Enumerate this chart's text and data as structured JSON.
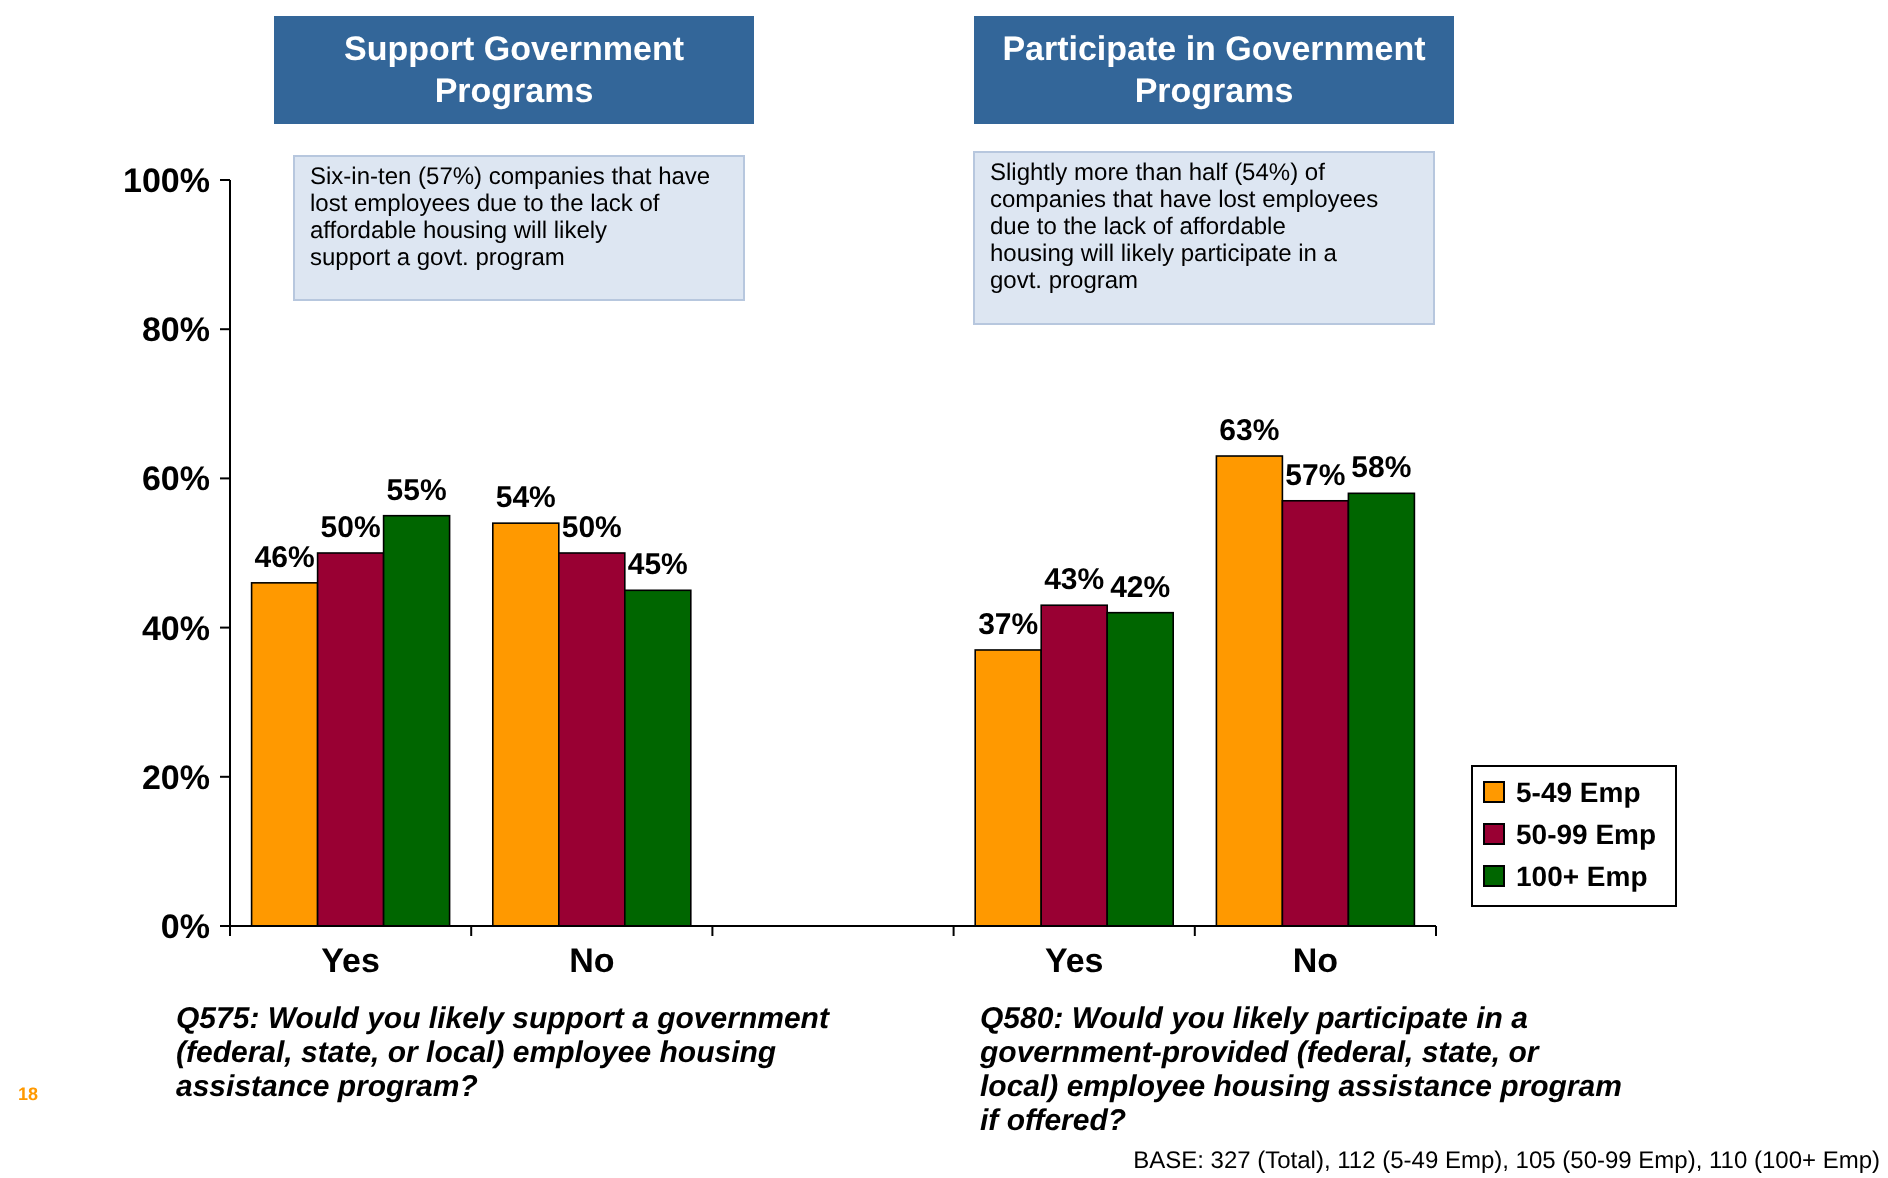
{
  "chart_data": {
    "type": "bar",
    "categories": [
      "Yes",
      "No",
      null,
      "Yes",
      "No"
    ],
    "series": [
      {
        "name": "5-49 Emp",
        "color": "#ff9900",
        "values": [
          46,
          54,
          null,
          37,
          63
        ],
        "value_labels": [
          "46%",
          "54%",
          null,
          "37%",
          "63%"
        ]
      },
      {
        "name": "50-99 Emp",
        "color": "#990033",
        "values": [
          50,
          50,
          null,
          43,
          57
        ],
        "value_labels": [
          "50%",
          "50%",
          null,
          "43%",
          "57%"
        ]
      },
      {
        "name": "100+ Emp",
        "color": "#006600",
        "values": [
          55,
          45,
          null,
          42,
          58
        ],
        "value_labels": [
          "55%",
          "45%",
          null,
          "42%",
          "58%"
        ]
      }
    ],
    "ylim": [
      0,
      100
    ],
    "yticks": [
      {
        "value": 0,
        "label": "0%"
      },
      {
        "value": 20,
        "label": "20%"
      },
      {
        "value": 40,
        "label": "40%"
      },
      {
        "value": 60,
        "label": "60%"
      },
      {
        "value": 80,
        "label": "80%"
      },
      {
        "value": 100,
        "label": "100%"
      }
    ],
    "legend": "right",
    "grid": false,
    "annotations": [
      "Support Government Programs",
      "Participate in Government Programs",
      "Six-in-ten (57%) companies that have lost employees due to the lack of affordable housing will likely support a govt. program",
      "Slightly more than half (54%) of companies that have lost employees due to the lack of affordable housing will likely participate in a govt. program",
      "Q575: Would you likely support a government (federal, state, or local) employee housing assistance program?",
      "Q580: Would you likely participate in a government-provided (federal, state, or local) employee housing assistance program if offered?",
      "BASE: 327 (Total), 112 (5-49 Emp), 105 (50-99 Emp), 110 (100+ Emp)",
      "18"
    ]
  }
}
